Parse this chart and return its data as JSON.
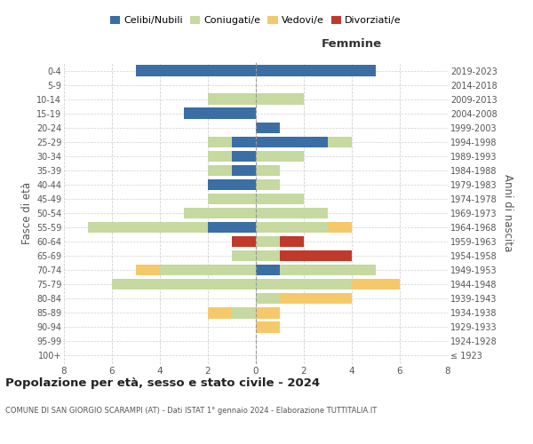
{
  "age_groups": [
    "100+",
    "95-99",
    "90-94",
    "85-89",
    "80-84",
    "75-79",
    "70-74",
    "65-69",
    "60-64",
    "55-59",
    "50-54",
    "45-49",
    "40-44",
    "35-39",
    "30-34",
    "25-29",
    "20-24",
    "15-19",
    "10-14",
    "5-9",
    "0-4"
  ],
  "birth_years": [
    "≤ 1923",
    "1924-1928",
    "1929-1933",
    "1934-1938",
    "1939-1943",
    "1944-1948",
    "1949-1953",
    "1954-1958",
    "1959-1963",
    "1964-1968",
    "1969-1973",
    "1974-1978",
    "1979-1983",
    "1984-1988",
    "1989-1993",
    "1994-1998",
    "1999-2003",
    "2004-2008",
    "2009-2013",
    "2014-2018",
    "2019-2023"
  ],
  "male": {
    "celibi": [
      0,
      0,
      0,
      0,
      0,
      0,
      0,
      0,
      0,
      2,
      0,
      0,
      2,
      1,
      1,
      1,
      0,
      3,
      0,
      0,
      5
    ],
    "coniugati": [
      0,
      0,
      0,
      1,
      0,
      6,
      4,
      1,
      0,
      5,
      3,
      2,
      0,
      1,
      1,
      1,
      0,
      0,
      2,
      0,
      0
    ],
    "vedovi": [
      0,
      0,
      0,
      1,
      0,
      0,
      1,
      0,
      0,
      0,
      0,
      0,
      0,
      0,
      0,
      0,
      0,
      0,
      0,
      0,
      0
    ],
    "divorziati": [
      0,
      0,
      0,
      0,
      0,
      0,
      0,
      0,
      1,
      0,
      0,
      0,
      0,
      0,
      0,
      0,
      0,
      0,
      0,
      0,
      0
    ]
  },
  "female": {
    "nubili": [
      0,
      0,
      0,
      0,
      0,
      0,
      1,
      0,
      0,
      0,
      0,
      0,
      0,
      0,
      0,
      3,
      1,
      0,
      0,
      0,
      5
    ],
    "coniugate": [
      0,
      0,
      0,
      0,
      1,
      4,
      4,
      1,
      1,
      3,
      3,
      2,
      1,
      1,
      2,
      1,
      0,
      0,
      2,
      0,
      0
    ],
    "vedove": [
      0,
      0,
      1,
      1,
      3,
      2,
      0,
      0,
      0,
      1,
      0,
      0,
      0,
      0,
      0,
      0,
      0,
      0,
      0,
      0,
      0
    ],
    "divorziate": [
      0,
      0,
      0,
      0,
      0,
      0,
      0,
      3,
      1,
      0,
      0,
      0,
      0,
      0,
      0,
      0,
      0,
      0,
      0,
      0,
      0
    ]
  },
  "colors": {
    "celibi": "#3a6ea5",
    "coniugati": "#c5d9a0",
    "vedovi": "#f5c96a",
    "divorziati": "#c0392b"
  },
  "title": "Popolazione per età, sesso e stato civile - 2024",
  "subtitle": "COMUNE DI SAN GIORGIO SCARAMPI (AT) - Dati ISTAT 1° gennaio 2024 - Elaborazione TUTTITALIA.IT",
  "xlabel_right": "Femmine",
  "ylabel": "Fasce di età",
  "ylabel_right": "Anni di nascita",
  "xlim": 8,
  "bg_color": "#ffffff",
  "grid_color": "#cccccc"
}
